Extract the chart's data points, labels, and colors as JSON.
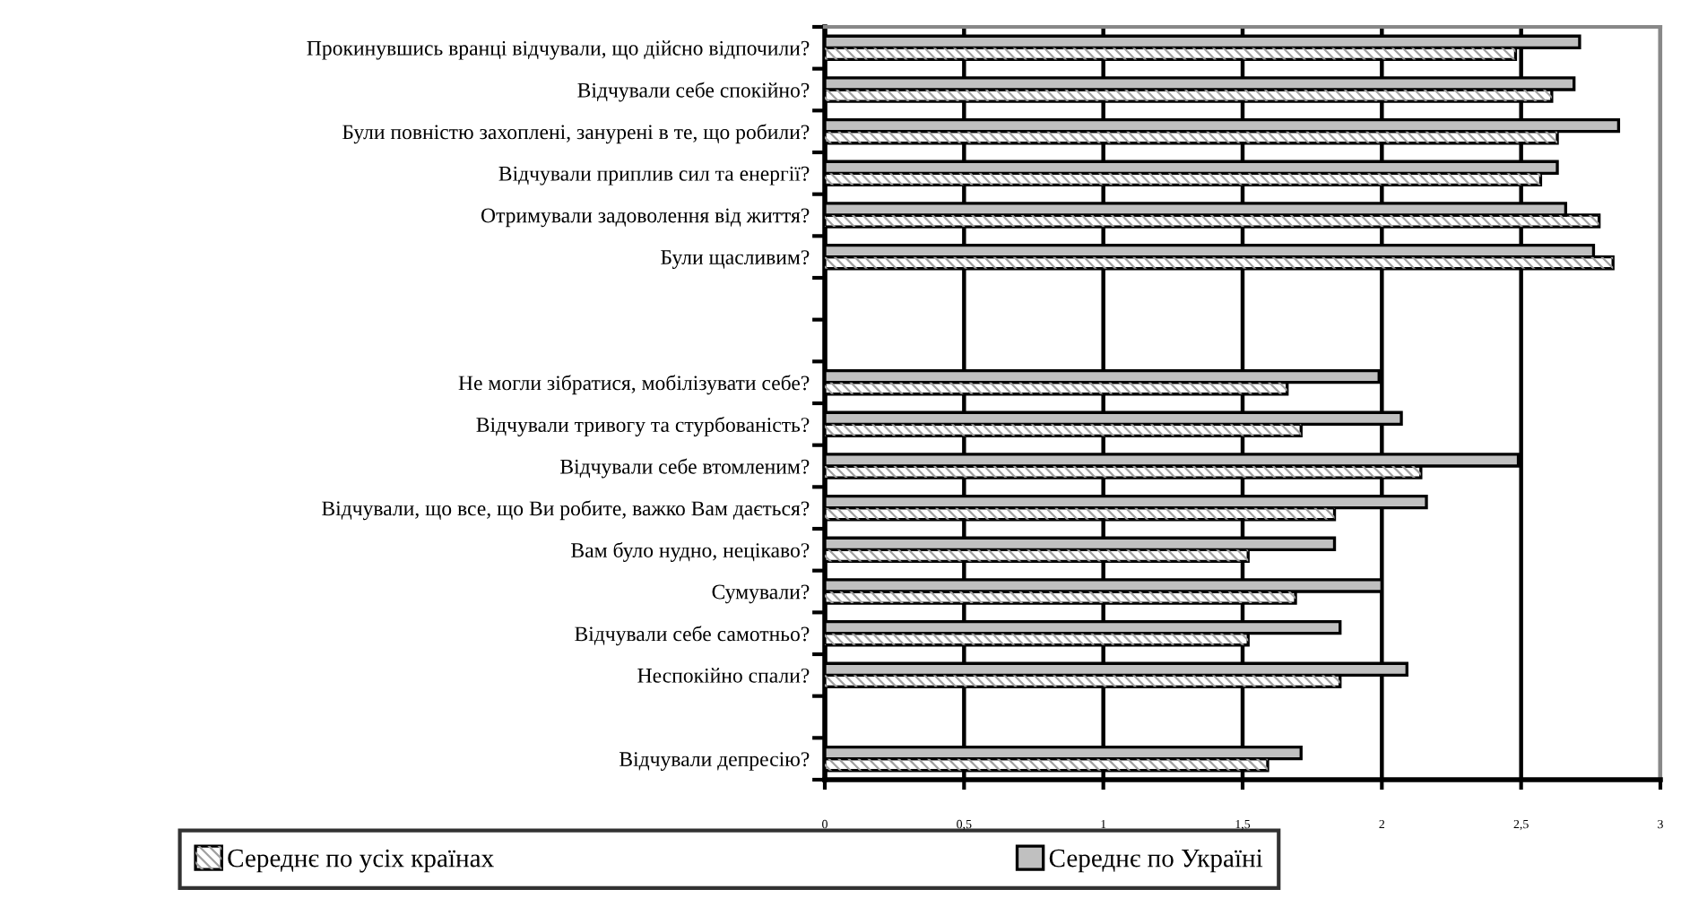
{
  "chart_data": {
    "type": "bar",
    "orientation": "horizontal",
    "categories": [
      "Прокинувшись вранці відчували, що дійсно відпочили?",
      "Відчували себе спокійно?",
      "Були повністю захоплені, занурені в те, що робили?",
      "Відчували приплив сил та енергії?",
      "Отримували задоволення від життя?",
      "Були щасливим?",
      null,
      null,
      "Не могли зібратися, мобілізувати себе?",
      "Відчували тривогу та стурбованість?",
      "Відчували себе втомленим?",
      "Відчували, що все, що Ви робите, важко Вам дається?",
      "Вам було нудно, нецікаво?",
      "Сумували?",
      "Відчували себе самотньо?",
      "Неспокійно спали?",
      null,
      "Відчували депресію?"
    ],
    "series": [
      {
        "name": "Середнє по усіх країнах",
        "color": "#a0a0a0",
        "values": [
          2.48,
          2.61,
          2.63,
          2.57,
          2.78,
          2.83,
          null,
          null,
          1.66,
          1.71,
          2.14,
          1.83,
          1.52,
          1.69,
          1.52,
          1.85,
          null,
          1.59
        ]
      },
      {
        "name": "Середнє по Україні",
        "color": "#c0c0c0",
        "values": [
          2.71,
          2.69,
          2.85,
          2.63,
          2.66,
          2.76,
          null,
          null,
          1.99,
          2.07,
          2.49,
          2.16,
          1.83,
          2.0,
          1.85,
          2.09,
          null,
          1.71
        ]
      }
    ],
    "xlim": [
      0,
      3
    ],
    "xticks": [
      0,
      {
        "value": 0.5,
        "label": "0,5"
      },
      1,
      {
        "value": 1.5,
        "label": "1,5"
      },
      2,
      {
        "value": 2.5,
        "label": "2,5"
      },
      3
    ],
    "grid": "x",
    "legend": "bottom"
  }
}
